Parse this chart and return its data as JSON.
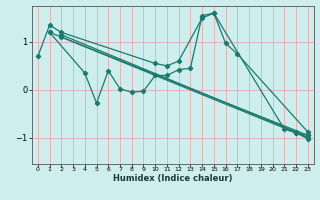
{
  "xlabel": "Humidex (Indice chaleur)",
  "bg_color": "#cdeeed",
  "line_color": "#1a7a6e",
  "grid_color": "#e8a0a0",
  "xlim": [
    -0.5,
    23.5
  ],
  "ylim": [
    -1.55,
    1.75
  ],
  "yticks": [
    -1,
    0,
    1
  ],
  "xticks": [
    0,
    1,
    2,
    3,
    4,
    5,
    6,
    7,
    8,
    9,
    10,
    11,
    12,
    13,
    14,
    15,
    16,
    17,
    18,
    19,
    20,
    21,
    22,
    23
  ],
  "line1": {
    "x": [
      0,
      1,
      2,
      10,
      11,
      12,
      14,
      15,
      16,
      17,
      23
    ],
    "y": [
      0.7,
      1.35,
      1.2,
      0.55,
      0.5,
      0.6,
      1.5,
      1.6,
      0.97,
      0.75,
      -0.88
    ]
  },
  "line2": {
    "x": [
      1,
      4,
      5,
      6,
      7,
      8,
      9,
      10,
      11,
      12,
      13,
      14,
      15,
      21,
      22,
      23
    ],
    "y": [
      1.2,
      0.35,
      -0.28,
      0.4,
      0.02,
      -0.05,
      -0.03,
      0.3,
      0.3,
      0.42,
      0.45,
      1.55,
      1.6,
      -0.82,
      -0.9,
      -0.95
    ]
  },
  "line3": {
    "x": [
      1,
      23
    ],
    "y": [
      1.2,
      -0.95
    ]
  },
  "line4": {
    "x": [
      2,
      22,
      23
    ],
    "y": [
      1.15,
      -0.88,
      -1.0
    ]
  },
  "line5": {
    "x": [
      2,
      22,
      23
    ],
    "y": [
      1.1,
      -0.9,
      -1.02
    ]
  }
}
